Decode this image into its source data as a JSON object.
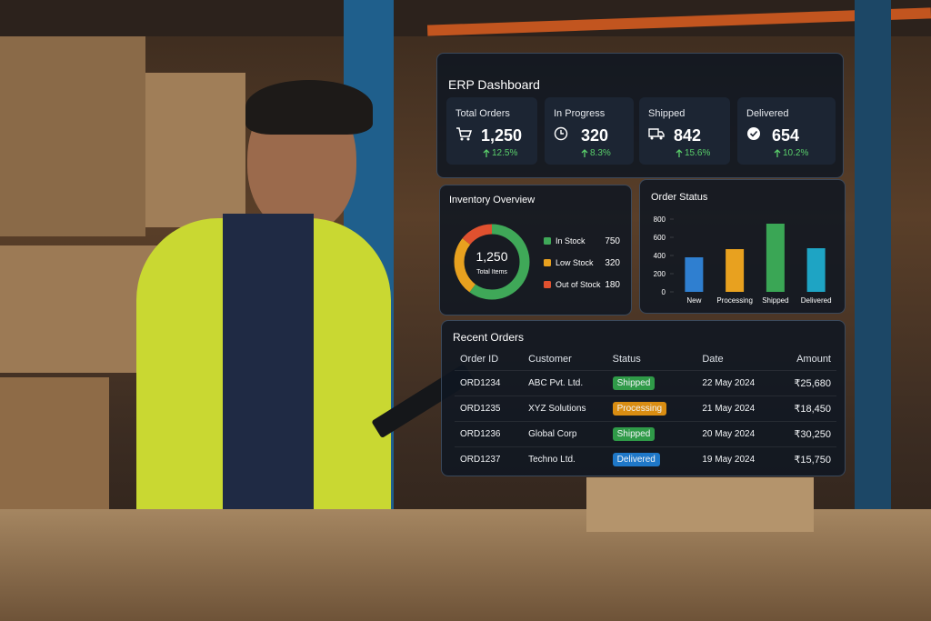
{
  "dashboard": {
    "title": "ERP Dashboard",
    "kpis": [
      {
        "label": "Total Orders",
        "value": "1,250",
        "change": "12.5%"
      },
      {
        "label": "In Progress",
        "value": "320",
        "change": "8.3%"
      },
      {
        "label": "Shipped",
        "value": "842",
        "change": "15.6%"
      },
      {
        "label": "Delivered",
        "value": "654",
        "change": "10.2%"
      }
    ]
  },
  "inventory": {
    "type": "pie",
    "title": "Inventory Overview",
    "center_value": "1,250",
    "center_label": "Total Items",
    "categories": [
      "In Stock",
      "Low Stock",
      "Out of Stock"
    ],
    "values": [
      750,
      320,
      180
    ],
    "colors": [
      "#3fa858",
      "#e8a11f",
      "#e0512f"
    ]
  },
  "order_status": {
    "type": "bar",
    "title": "Order Status",
    "categories": [
      "New",
      "Processing",
      "Shipped",
      "Delivered"
    ],
    "values": [
      380,
      470,
      750,
      480
    ],
    "colors": [
      "#2f7fd0",
      "#e8a11f",
      "#3aa655",
      "#1ea4c4"
    ],
    "ylim": [
      0,
      800
    ],
    "yticks": [
      0,
      200,
      400,
      600,
      800
    ]
  },
  "recent_orders": {
    "title": "Recent Orders",
    "columns": [
      "Order ID",
      "Customer",
      "Status",
      "Date",
      "Amount"
    ],
    "rows": [
      [
        "ORD1234",
        "ABC Pvt. Ltd.",
        "Shipped",
        "22 May 2024",
        "₹25,680"
      ],
      [
        "ORD1235",
        "XYZ Solutions",
        "Processing",
        "21 May 2024",
        "₹18,450"
      ],
      [
        "ORD1236",
        "Global Corp",
        "Shipped",
        "20 May 2024",
        "₹30,250"
      ],
      [
        "ORD1237",
        "Techno Ltd.",
        "Delivered",
        "19 May 2024",
        "₹15,750"
      ]
    ]
  }
}
